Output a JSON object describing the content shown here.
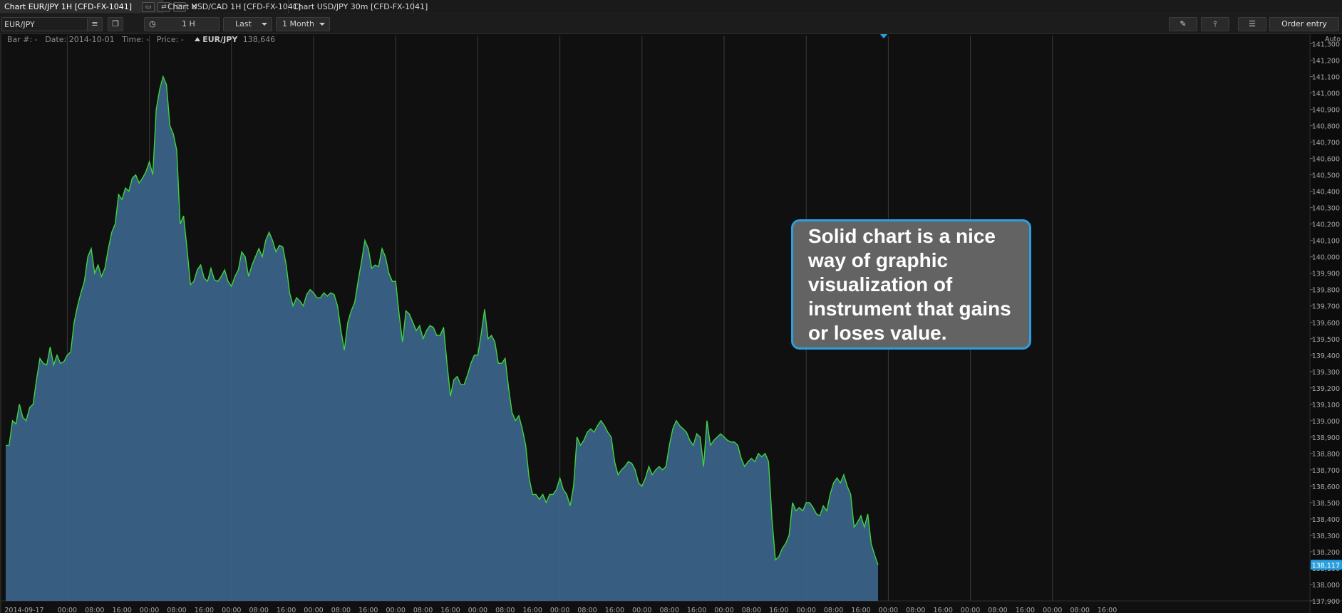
{
  "tabs": [
    {
      "label": "Chart EUR/JPY 1H [CFD-FX-1041]",
      "active": true
    },
    {
      "label": "Chart USD/CAD 1H [CFD-FX-1041]",
      "active": false
    },
    {
      "label": "Chart USD/JPY 30m [CFD-FX-1041]",
      "active": false
    }
  ],
  "tab_close_glyph": "×",
  "toolbar": {
    "symbol_value": "EUR/JPY",
    "interval": "1 H",
    "price_type": "Last",
    "range": "1 Month",
    "order_entry": "Order entry"
  },
  "info_line": {
    "bar": "Bar #: -",
    "date": "Date: 2014-10-01",
    "time": "Time: -",
    "price": "Price: -",
    "symbol": "EUR/JPY",
    "symbol_price": "138,646"
  },
  "callout_text": "Solid chart is a nice way of graphic visualization of instrument that gains or loses value.",
  "colors": {
    "line": "#3fd43f",
    "fill": "#3a6288",
    "accent": "#2aa0e0",
    "background": "#101010"
  },
  "icons": [
    "pin-icon",
    "link-icon",
    "detach-icon",
    "close-icon",
    "list-icon",
    "windows-icon",
    "clock-icon",
    "pencil-icon",
    "indicator-icon",
    "menu-icon"
  ],
  "chart_data": {
    "type": "area",
    "scale_mode": "Auto",
    "ylim": [
      137.9,
      141.35
    ],
    "current_price": "138,117",
    "y_tick_labels": [
      "141,300",
      "141,200",
      "141,100",
      "141,000",
      "140,900",
      "140,800",
      "140,700",
      "140,600",
      "140,500",
      "140,400",
      "140,300",
      "140,200",
      "140,100",
      "140,000",
      "139,900",
      "139,800",
      "139,700",
      "139,600",
      "139,500",
      "139,400",
      "139,300",
      "139,200",
      "139,100",
      "139,000",
      "138,900",
      "138,800",
      "138,700",
      "138,600",
      "138,500",
      "138,400",
      "138,300",
      "138,200",
      "138,100",
      "138,000",
      "137,900"
    ],
    "x_tick_labels": [
      "2014-09-17",
      "00:00",
      "08:00",
      "16:00",
      "00:00",
      "08:00",
      "16:00",
      "00:00",
      "08:00",
      "16:00",
      "00:00",
      "08:00",
      "16:00",
      "00:00",
      "08:00",
      "16:00",
      "00:00",
      "08:00",
      "16:00",
      "00:00",
      "08:00",
      "16:00",
      "00:00",
      "08:00",
      "16:00",
      "00:00",
      "08:00",
      "16:00",
      "00:00",
      "08:00",
      "16:00",
      "00:00",
      "08:00",
      "16:00",
      "00:00",
      "08:00",
      "16:00",
      "00:00",
      "08:00",
      "16:00"
    ],
    "grid": true,
    "day_separators_at_bar": [
      0,
      18,
      42,
      66,
      90,
      114,
      138,
      162,
      186,
      210,
      234,
      258,
      282,
      306
    ],
    "values": [
      138.85,
      138.85,
      139.0,
      138.98,
      139.1,
      139.02,
      139.0,
      139.08,
      139.1,
      139.25,
      139.38,
      139.35,
      139.34,
      139.45,
      139.34,
      139.4,
      139.35,
      139.36,
      139.4,
      139.42,
      139.6,
      139.7,
      139.78,
      139.85,
      140.0,
      140.05,
      139.9,
      139.95,
      139.88,
      139.93,
      140.05,
      140.15,
      140.2,
      140.38,
      140.35,
      140.42,
      140.4,
      140.48,
      140.5,
      140.45,
      140.48,
      140.52,
      140.58,
      140.5,
      140.9,
      141.02,
      141.1,
      141.05,
      140.8,
      140.75,
      140.65,
      140.2,
      140.25,
      140.05,
      139.83,
      139.85,
      139.92,
      139.95,
      139.87,
      139.85,
      139.93,
      139.86,
      139.85,
      139.88,
      139.92,
      139.85,
      139.82,
      139.88,
      139.92,
      140.03,
      140.0,
      139.88,
      139.95,
      140.0,
      140.05,
      140.0,
      140.1,
      140.15,
      140.1,
      140.03,
      140.07,
      140.06,
      139.95,
      139.78,
      139.7,
      139.75,
      139.73,
      139.7,
      139.77,
      139.8,
      139.78,
      139.75,
      139.75,
      139.78,
      139.76,
      139.78,
      139.77,
      139.7,
      139.55,
      139.43,
      139.6,
      139.67,
      139.72,
      139.85,
      139.97,
      140.1,
      140.05,
      139.93,
      139.95,
      139.94,
      140.05,
      140.0,
      139.9,
      139.85,
      139.85,
      139.65,
      139.48,
      139.67,
      139.65,
      139.6,
      139.55,
      139.58,
      139.5,
      139.55,
      139.58,
      139.57,
      139.52,
      139.52,
      139.57,
      139.35,
      139.15,
      139.25,
      139.27,
      139.22,
      139.22,
      139.28,
      139.35,
      139.4,
      139.4,
      139.53,
      139.68,
      139.5,
      139.52,
      139.48,
      139.35,
      139.35,
      139.38,
      139.2,
      139.05,
      139.0,
      139.03,
      138.95,
      138.85,
      138.65,
      138.55,
      138.55,
      138.52,
      138.55,
      138.5,
      138.55,
      138.55,
      138.58,
      138.65,
      138.58,
      138.55,
      138.48,
      138.6,
      138.9,
      138.85,
      138.88,
      138.93,
      138.95,
      138.93,
      138.97,
      139.0,
      138.97,
      138.93,
      138.9,
      138.75,
      138.67,
      138.7,
      138.72,
      138.75,
      138.74,
      138.7,
      138.62,
      138.6,
      138.65,
      138.72,
      138.67,
      138.7,
      138.72,
      138.7,
      138.72,
      138.85,
      138.95,
      139.0,
      138.97,
      138.95,
      138.93,
      138.88,
      138.85,
      138.92,
      138.9,
      138.72,
      139.0,
      138.85,
      138.88,
      138.9,
      138.92,
      138.9,
      138.88,
      138.87,
      138.87,
      138.85,
      138.77,
      138.72,
      138.75,
      138.77,
      138.75,
      138.8,
      138.78,
      138.8,
      138.75,
      138.4,
      138.15,
      138.17,
      138.22,
      138.25,
      138.3,
      138.5,
      138.45,
      138.47,
      138.45,
      138.5,
      138.5,
      138.47,
      138.43,
      138.42,
      138.48,
      138.45,
      138.55,
      138.62,
      138.65,
      138.62,
      138.67,
      138.6,
      138.55,
      138.35,
      138.38,
      138.42,
      138.35,
      138.43,
      138.25,
      138.18,
      138.12
    ]
  }
}
